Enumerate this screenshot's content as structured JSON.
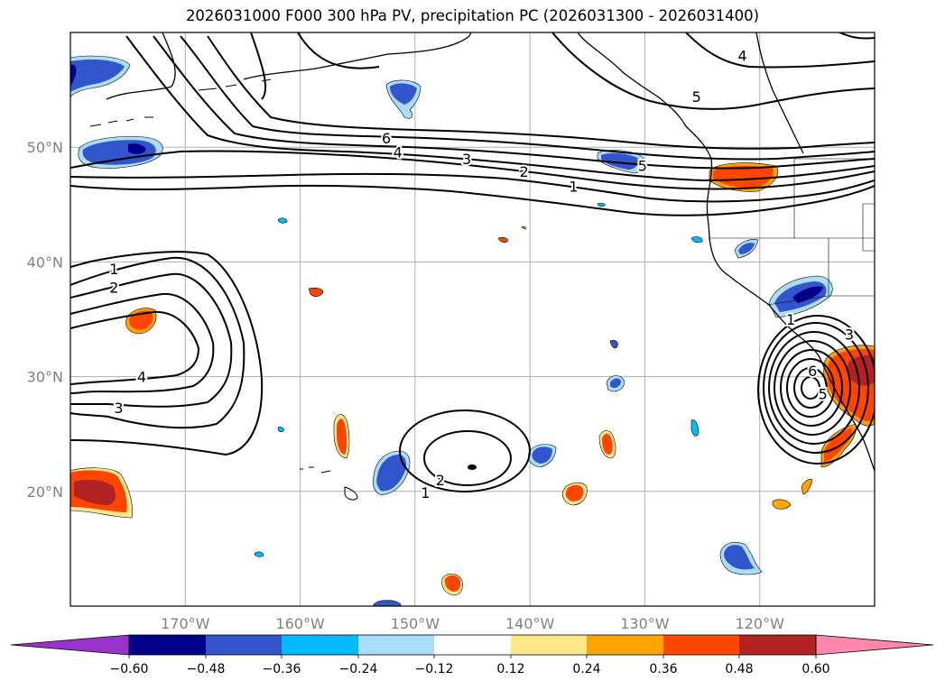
{
  "title": "2026031000 F000 300 hPa PV, precipitation PC (2026031300 - 2026031400)",
  "map": {
    "lon_range": [
      -180,
      -110
    ],
    "lat_range": [
      10,
      60
    ],
    "lat_labels": [
      {
        "value": 50,
        "label": "50°N"
      },
      {
        "value": 40,
        "label": "40°N"
      },
      {
        "value": 30,
        "label": "30°N"
      },
      {
        "value": 20,
        "label": "20°N"
      }
    ],
    "lon_labels": [
      {
        "value": -170,
        "label": "170°W"
      },
      {
        "value": -160,
        "label": "160°W"
      },
      {
        "value": -150,
        "label": "150°W"
      },
      {
        "value": -140,
        "label": "140°W"
      },
      {
        "value": -130,
        "label": "130°W"
      },
      {
        "value": -120,
        "label": "120°W"
      }
    ],
    "contour_labels": [
      {
        "text": "6",
        "lon": -152.5,
        "lat": 50.8
      },
      {
        "text": "4",
        "lon": -151.5,
        "lat": 49.6
      },
      {
        "text": "3",
        "lon": -145.5,
        "lat": 49.0
      },
      {
        "text": "2",
        "lon": -140.5,
        "lat": 47.9
      },
      {
        "text": "1",
        "lon": -136.2,
        "lat": 46.6
      },
      {
        "text": "5",
        "lon": -130.2,
        "lat": 48.4
      },
      {
        "text": "4",
        "lon": -121.5,
        "lat": 58.0
      },
      {
        "text": "5",
        "lon": -125.5,
        "lat": 54.4
      },
      {
        "text": "1",
        "lon": -176.2,
        "lat": 39.4
      },
      {
        "text": "2",
        "lon": -176.2,
        "lat": 37.8
      },
      {
        "text": "4",
        "lon": -173.8,
        "lat": 30.0
      },
      {
        "text": "3",
        "lon": -175.8,
        "lat": 27.3
      },
      {
        "text": "2",
        "lon": -147.8,
        "lat": 21.0
      },
      {
        "text": "1",
        "lon": -149.1,
        "lat": 19.9
      },
      {
        "text": "1",
        "lon": -117.3,
        "lat": 35.0
      },
      {
        "text": "3",
        "lon": -112.2,
        "lat": 33.7
      },
      {
        "text": "6",
        "lon": -115.4,
        "lat": 30.5
      },
      {
        "text": "5",
        "lon": -114.5,
        "lat": 28.5
      }
    ]
  },
  "colorbar": {
    "labels": [
      "−0.60",
      "−0.48",
      "−0.36",
      "−0.24",
      "−0.12",
      "0.12",
      "0.24",
      "0.36",
      "0.48",
      "0.60"
    ],
    "colors": [
      "#9933cc",
      "#00008b",
      "#3355cc",
      "#00bbff",
      "#aaddf7",
      "#ffffff",
      "#ffe88a",
      "#ffa500",
      "#ff4500",
      "#b22222",
      "#ff88aa"
    ]
  },
  "colors": {
    "pos_light": "#ffe88a",
    "pos_orange": "#ffa500",
    "pos_red": "#ff4500",
    "pos_dark": "#b22222",
    "neg_light": "#aaddf7",
    "neg_cyan": "#00bbff",
    "neg_blue": "#3355cc",
    "neg_dark": "#00008b"
  }
}
